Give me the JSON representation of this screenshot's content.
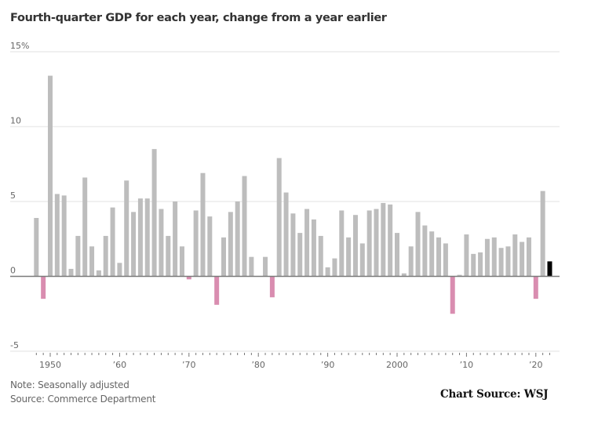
{
  "chart_data": {
    "type": "bar",
    "title": "Fourth-quarter GDP for each year, change from a year earlier",
    "xlabel": "",
    "ylabel": "",
    "ylim": [
      -5,
      15
    ],
    "y_ticks": [
      {
        "value": 15,
        "label": "15%"
      },
      {
        "value": 10,
        "label": "10"
      },
      {
        "value": 5,
        "label": "5"
      },
      {
        "value": 0,
        "label": "0"
      },
      {
        "value": -5,
        "label": "-5"
      }
    ],
    "x_ticks": [
      {
        "year": 1950,
        "label": "1950"
      },
      {
        "year": 1960,
        "label": "’60"
      },
      {
        "year": 1970,
        "label": "’70"
      },
      {
        "year": 1980,
        "label": "’80"
      },
      {
        "year": 1990,
        "label": "’90"
      },
      {
        "year": 2000,
        "label": "2000"
      },
      {
        "year": 2010,
        "label": "’10"
      },
      {
        "year": 2020,
        "label": "’20"
      }
    ],
    "grid": true,
    "colors": {
      "positive": "#bdbdbd",
      "negative": "#d98db0",
      "highlight": "#000000",
      "gridline": "#ececec",
      "zero_line": "#7a7a7a"
    },
    "highlight_year": 2022,
    "categories": [
      1948,
      1949,
      1950,
      1951,
      1952,
      1953,
      1954,
      1955,
      1956,
      1957,
      1958,
      1959,
      1960,
      1961,
      1962,
      1963,
      1964,
      1965,
      1966,
      1967,
      1968,
      1969,
      1970,
      1971,
      1972,
      1973,
      1974,
      1975,
      1976,
      1977,
      1978,
      1979,
      1980,
      1981,
      1982,
      1983,
      1984,
      1985,
      1986,
      1987,
      1988,
      1989,
      1990,
      1991,
      1992,
      1993,
      1994,
      1995,
      1996,
      1997,
      1998,
      1999,
      2000,
      2001,
      2002,
      2003,
      2004,
      2005,
      2006,
      2007,
      2008,
      2009,
      2010,
      2011,
      2012,
      2013,
      2014,
      2015,
      2016,
      2017,
      2018,
      2019,
      2020,
      2021,
      2022
    ],
    "values": [
      3.9,
      -1.5,
      13.4,
      5.5,
      5.4,
      0.5,
      2.7,
      6.6,
      2.0,
      0.4,
      2.7,
      4.6,
      0.9,
      6.4,
      4.3,
      5.2,
      5.2,
      8.5,
      4.5,
      2.7,
      5.0,
      2.0,
      -0.2,
      4.4,
      6.9,
      4.0,
      -1.9,
      2.6,
      4.3,
      5.0,
      6.7,
      1.3,
      0.0,
      1.3,
      -1.4,
      7.9,
      5.6,
      4.2,
      2.9,
      4.5,
      3.8,
      2.7,
      0.6,
      1.2,
      4.4,
      2.6,
      4.1,
      2.2,
      4.4,
      4.5,
      4.9,
      4.8,
      2.9,
      0.2,
      2.0,
      4.3,
      3.4,
      3.0,
      2.6,
      2.2,
      -2.5,
      0.1,
      2.8,
      1.5,
      1.6,
      2.5,
      2.6,
      1.9,
      2.0,
      2.8,
      2.3,
      2.6,
      -1.5,
      5.7,
      1.0
    ]
  },
  "footer": {
    "note": "Note: Seasonally adjusted",
    "source": "Source: Commerce Department",
    "credit": "Chart Source:  WSJ"
  }
}
